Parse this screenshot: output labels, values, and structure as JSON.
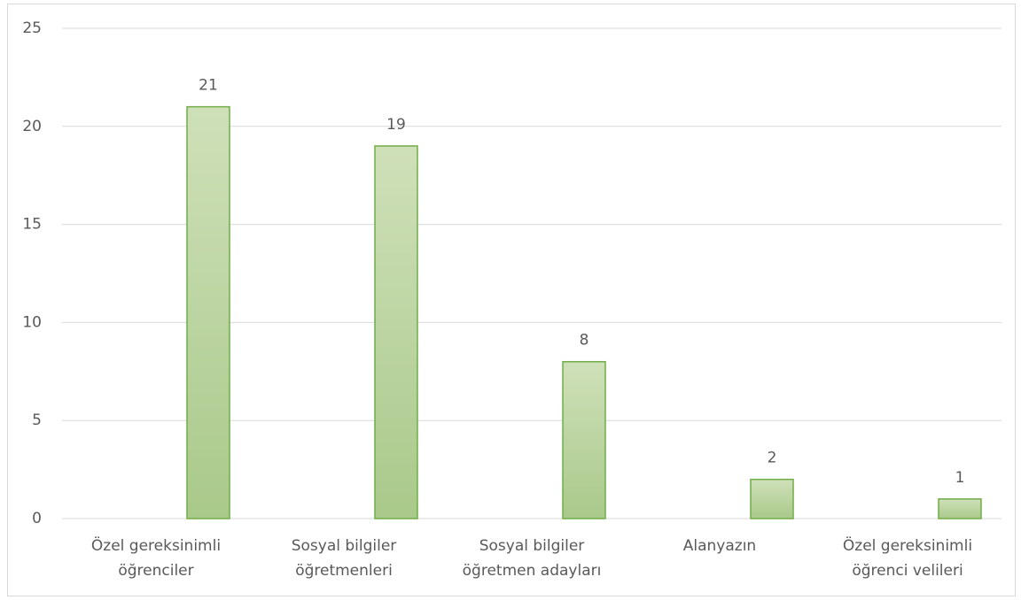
{
  "chart_data": {
    "type": "bar",
    "categories": [
      [
        "Özel gereksinimli",
        "öğrenciler"
      ],
      [
        "Sosyal bilgiler",
        "öğretmenleri"
      ],
      [
        "Sosyal bilgiler",
        "öğretmen adayları"
      ],
      [
        "Alanyazın"
      ],
      [
        "Özel gereksinimli",
        "öğrenci velileri"
      ]
    ],
    "values": [
      21,
      19,
      8,
      2,
      1
    ],
    "color": "#a9c98a",
    "edgecolor": "#70ad47",
    "ylim": [
      0,
      25
    ],
    "yticks": [
      0,
      5,
      10,
      15,
      20,
      25
    ],
    "grid": true
  }
}
